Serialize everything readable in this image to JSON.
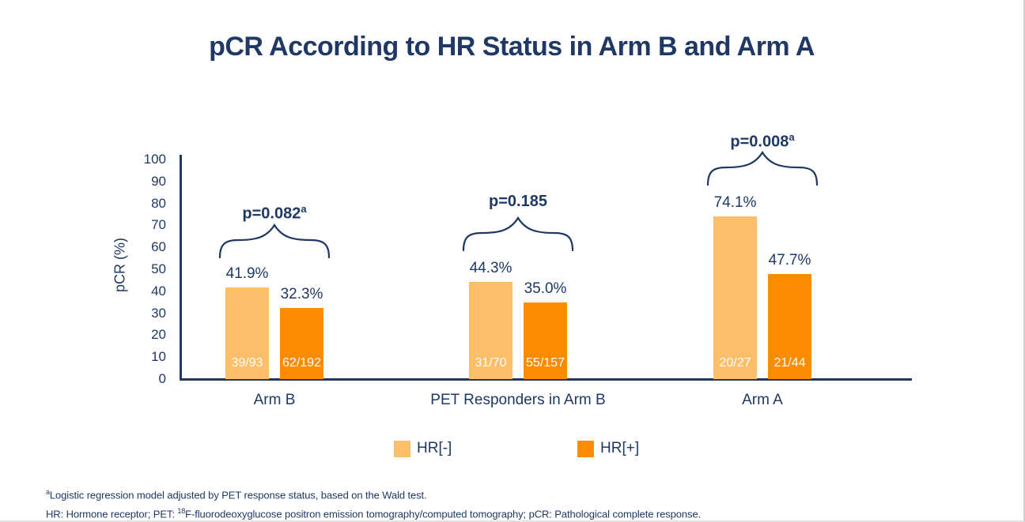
{
  "colors": {
    "navy": "#1F3864",
    "hr_negative": "#FDBE69",
    "hr_positive": "#FB8C00",
    "bar_count_text": "#FFFFFF"
  },
  "chart_data": {
    "type": "bar",
    "title": "pCR According to HR Status in Arm B and Arm A",
    "ylabel": "pCR (%)",
    "xlabel": "",
    "ylim": [
      0,
      100
    ],
    "yticks": [
      0,
      10,
      20,
      30,
      40,
      50,
      60,
      70,
      80,
      90,
      100
    ],
    "grid": false,
    "legend_position": "bottom",
    "categories": [
      "Arm B",
      "PET Responders in Arm B",
      "Arm A"
    ],
    "series": [
      {
        "name": "HR[-]",
        "color": "#FDBE69",
        "values": [
          41.9,
          44.3,
          74.1
        ],
        "value_labels": [
          "41.9%",
          "44.3%",
          "74.1%"
        ],
        "count_labels": [
          "39/93",
          "31/70",
          "20/27"
        ]
      },
      {
        "name": "HR[+]",
        "color": "#FB8C00",
        "values": [
          32.3,
          35.0,
          47.7
        ],
        "value_labels": [
          "32.3%",
          "35.0%",
          "47.7%"
        ],
        "count_labels": [
          "62/192",
          "55/157",
          "21/44"
        ]
      }
    ],
    "p_values": [
      {
        "label": "p=0.082",
        "sup": "a"
      },
      {
        "label": "p=0.185",
        "sup": ""
      },
      {
        "label": "p=0.008",
        "sup": "a"
      }
    ]
  },
  "footnotes": {
    "line1_sup": "a",
    "line1_text": "Logistic regression model adjusted by PET response status, based on the Wald test.",
    "line2_pre": "HR: Hormone receptor; PET: ",
    "line2_sup": "18",
    "line2_post": "F-fluorodeoxyglucose positron emission tomography/computed tomography; pCR: Pathological complete response."
  }
}
